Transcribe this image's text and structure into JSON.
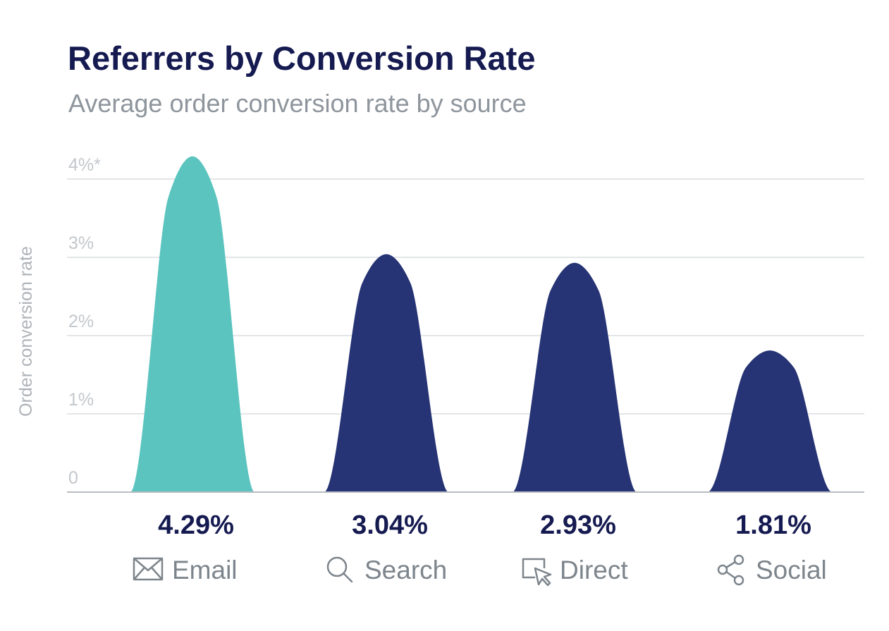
{
  "title": "Referrers by Conversion Rate",
  "subtitle": "Average order conversion rate by source",
  "colors": {
    "highlight": "#5bc4bf",
    "primary": "#263374",
    "title": "#151a50",
    "muted": "#8e959c"
  },
  "chart_data": {
    "type": "area",
    "title": "Referrers by Conversion Rate",
    "subtitle": "Average order conversion rate by source",
    "ylabel": "Order conversion rate",
    "ylim": [
      0,
      4
    ],
    "yticks": [
      {
        "value": 0,
        "label": "0"
      },
      {
        "value": 1,
        "label": "1%"
      },
      {
        "value": 2,
        "label": "2%"
      },
      {
        "value": 3,
        "label": "3%"
      },
      {
        "value": 4,
        "label": "4%*"
      }
    ],
    "grid": true,
    "categories": [
      "Email",
      "Search",
      "Direct",
      "Social"
    ],
    "values": [
      4.29,
      3.04,
      2.93,
      1.81
    ],
    "value_labels": [
      "4.29%",
      "3.04%",
      "2.93%",
      "1.81%"
    ],
    "icons": [
      "envelope-icon",
      "search-icon",
      "cursor-click-icon",
      "share-icon"
    ],
    "highlight_index": 0
  }
}
